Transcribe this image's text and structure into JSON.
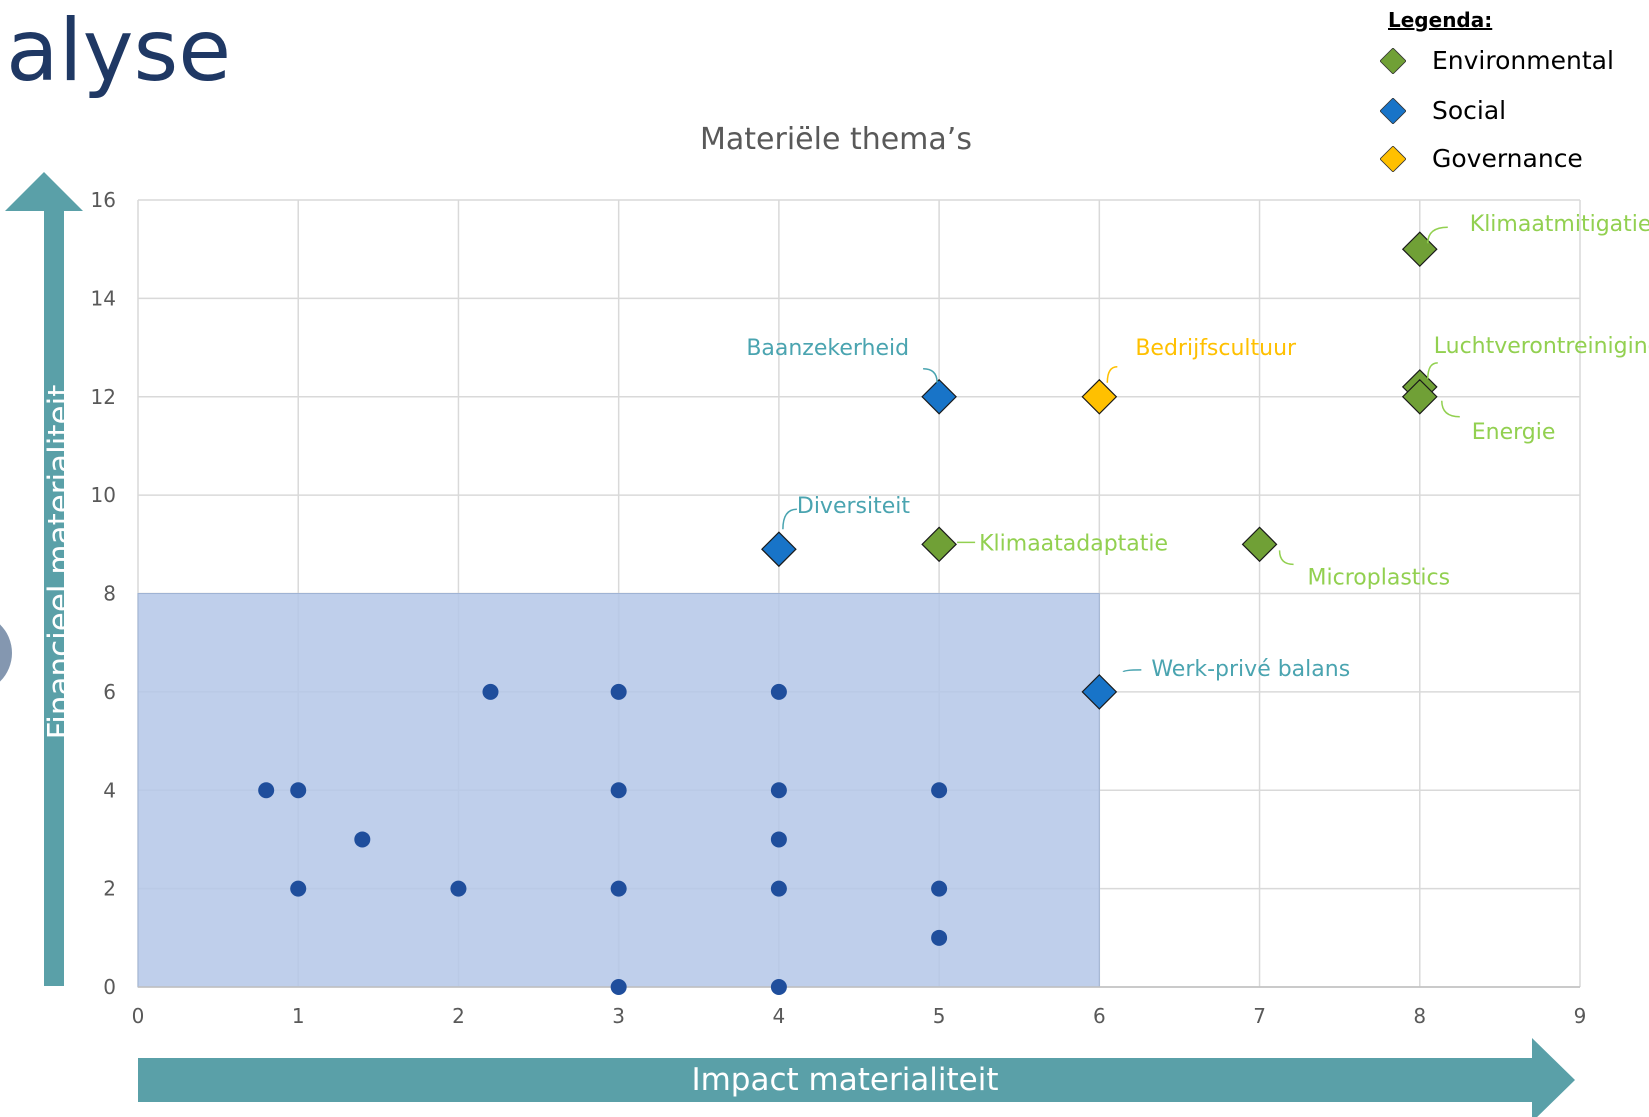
{
  "page": {
    "title": "alyse"
  },
  "legend": {
    "title": "Legenda:",
    "items": [
      {
        "label": "Environmental",
        "color": "#70a036"
      },
      {
        "label": "Social",
        "color": "#1874c8"
      },
      {
        "label": "Governance",
        "color": "#ffc000"
      }
    ]
  },
  "axis_arrows": {
    "y_label": "Financieel materialiteit",
    "x_label": "Impact materialiteit",
    "color": "#5aa0a8"
  },
  "chart_data": {
    "type": "scatter",
    "title": "Materiële thema’s",
    "xlabel": "Impact materialiteit",
    "ylabel": "Financieel materialiteit",
    "xlim": [
      0,
      9
    ],
    "ylim": [
      0,
      16
    ],
    "x_ticks": [
      "0",
      "1",
      "2",
      "3",
      "4",
      "5",
      "6",
      "7",
      "8",
      "9"
    ],
    "y_ticks": [
      "0",
      "2",
      "4",
      "6",
      "8",
      "10",
      "12",
      "14",
      "16"
    ],
    "grid": true,
    "shaded_region": {
      "x": [
        0,
        6
      ],
      "y": [
        0,
        8
      ],
      "color": "#b4c7e7"
    },
    "series": [
      {
        "name": "Environmental",
        "color": "#70a036",
        "label_color": "#92d050",
        "points": [
          {
            "x": 8,
            "y": 15,
            "label": "Klimaatmitigatie"
          },
          {
            "x": 8,
            "y": 12.2,
            "label": "Luchtverontreiniging"
          },
          {
            "x": 8,
            "y": 12,
            "label": "Energie"
          },
          {
            "x": 5,
            "y": 9,
            "label": "Klimaatadaptatie"
          },
          {
            "x": 7,
            "y": 9,
            "label": "Microplastics"
          }
        ]
      },
      {
        "name": "Social",
        "color": "#1874c8",
        "label_color": "#4aa4b0",
        "points": [
          {
            "x": 5,
            "y": 12,
            "label": "Baanzekerheid"
          },
          {
            "x": 4,
            "y": 8.9,
            "label": "Diversiteit"
          },
          {
            "x": 6,
            "y": 6,
            "label": "Werk-privé balans"
          }
        ]
      },
      {
        "name": "Governance",
        "color": "#ffc000",
        "label_color": "#ffc000",
        "points": [
          {
            "x": 6,
            "y": 12,
            "label": "Bedrijfscultuur"
          }
        ]
      },
      {
        "name": "",
        "color": "#1f4e9c",
        "points": [
          {
            "x": 0.8,
            "y": 4
          },
          {
            "x": 1,
            "y": 4
          },
          {
            "x": 1,
            "y": 2
          },
          {
            "x": 1.4,
            "y": 3
          },
          {
            "x": 2,
            "y": 2
          },
          {
            "x": 2.2,
            "y": 6
          },
          {
            "x": 3,
            "y": 6
          },
          {
            "x": 3,
            "y": 4
          },
          {
            "x": 3,
            "y": 2
          },
          {
            "x": 3,
            "y": 0
          },
          {
            "x": 4,
            "y": 6
          },
          {
            "x": 4,
            "y": 4
          },
          {
            "x": 4,
            "y": 3
          },
          {
            "x": 4,
            "y": 2
          },
          {
            "x": 4,
            "y": 0
          },
          {
            "x": 5,
            "y": 4
          },
          {
            "x": 5,
            "y": 2
          },
          {
            "x": 5,
            "y": 1
          }
        ]
      }
    ]
  }
}
